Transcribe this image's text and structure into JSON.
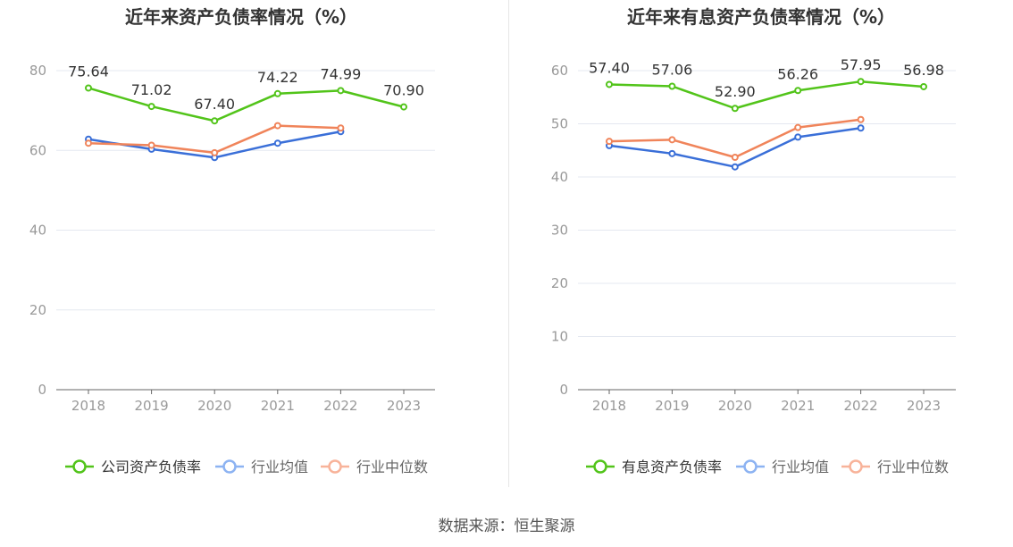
{
  "source": "数据来源：恒生聚源",
  "colors": {
    "company": "#52c41a",
    "avg": "#3a6fd8",
    "median": "#f0845a",
    "legend_avg": "#8db3f2",
    "legend_median": "#f8b39a",
    "grid": "#e4e8f0",
    "axis": "#999999",
    "label": "#333333"
  },
  "chart_data": [
    {
      "type": "line",
      "title": "近年来资产负债率情况（%）",
      "categories": [
        "2018",
        "2019",
        "2020",
        "2021",
        "2022",
        "2023"
      ],
      "ylim": [
        0,
        80
      ],
      "yticks": [
        0,
        20,
        40,
        60,
        80
      ],
      "grid": true,
      "legend_position": "bottom",
      "series": [
        {
          "name": "公司资产负债率",
          "key": "company",
          "values": [
            75.64,
            71.02,
            67.4,
            74.22,
            74.99,
            70.9
          ],
          "labels": [
            "75.64",
            "71.02",
            "67.40",
            "74.22",
            "74.99",
            "70.90"
          ]
        },
        {
          "name": "行业均值",
          "key": "avg",
          "values": [
            62.8,
            60.3,
            58.2,
            61.8,
            64.7,
            null
          ]
        },
        {
          "name": "行业中位数",
          "key": "median",
          "values": [
            61.8,
            61.3,
            59.4,
            66.2,
            65.6,
            null
          ]
        }
      ]
    },
    {
      "type": "line",
      "title": "近年来有息资产负债率情况（%）",
      "categories": [
        "2018",
        "2019",
        "2020",
        "2021",
        "2022",
        "2023"
      ],
      "ylim": [
        0,
        60
      ],
      "yticks": [
        0,
        10,
        20,
        30,
        40,
        50,
        60
      ],
      "grid": true,
      "legend_position": "bottom",
      "series": [
        {
          "name": "有息资产负债率",
          "key": "company",
          "values": [
            57.4,
            57.06,
            52.9,
            56.26,
            57.95,
            56.98
          ],
          "labels": [
            "57.40",
            "57.06",
            "52.90",
            "56.26",
            "57.95",
            "56.98"
          ]
        },
        {
          "name": "行业均值",
          "key": "avg",
          "values": [
            45.9,
            44.4,
            41.9,
            47.5,
            49.2,
            null
          ]
        },
        {
          "name": "行业中位数",
          "key": "median",
          "values": [
            46.7,
            47.0,
            43.7,
            49.3,
            50.8,
            null
          ]
        }
      ]
    }
  ]
}
